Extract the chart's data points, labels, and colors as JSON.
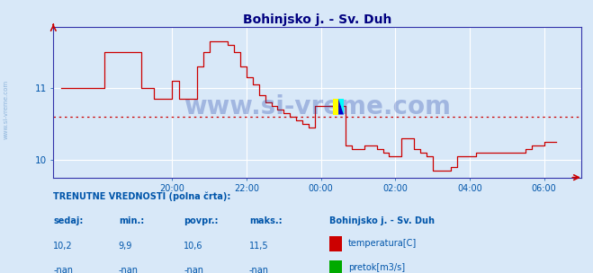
{
  "title": "Bohinjsko j. - Sv. Duh",
  "title_color": "#000080",
  "bg_color": "#d8e8f8",
  "plot_bg_color": "#d8e8f8",
  "grid_color": "#ffffff",
  "line_color": "#cc0000",
  "avg_line_color": "#cc0000",
  "avg_value": 10.6,
  "xlim": [
    -7.2,
    7.0
  ],
  "ylim": [
    9.75,
    11.85
  ],
  "yticks": [
    10,
    11
  ],
  "xtick_labels": [
    "20:00",
    "22:00",
    "00:00",
    "02:00",
    "04:00",
    "06:00"
  ],
  "xtick_positions": [
    -4,
    -2,
    0,
    2,
    4,
    6
  ],
  "watermark": "www.si-vreme.com",
  "watermark_color": "#2244aa",
  "watermark_alpha": 0.3,
  "footer_label1": "TRENUTNE VREDNOSTI (polna črta):",
  "footer_cols": [
    "sedaj:",
    "min.:",
    "povpr.:",
    "maks.:"
  ],
  "footer_vals_temp": [
    "10,2",
    "9,9",
    "10,6",
    "11,5"
  ],
  "footer_vals_pretok": [
    "-nan",
    "-nan",
    "-nan",
    "-nan"
  ],
  "footer_station": "Bohinjsko j. - Sv. Duh",
  "footer_color": "#0055aa",
  "legend_items": [
    {
      "label": "temperatura[C]",
      "color": "#cc0000"
    },
    {
      "label": "pretok[m3/s]",
      "color": "#00aa00"
    }
  ],
  "temp_data_x": [
    -7.0,
    -6.0,
    -5.83,
    -5.5,
    -5.0,
    -4.83,
    -4.5,
    -4.17,
    -4.0,
    -3.83,
    -3.5,
    -3.33,
    -3.17,
    -3.0,
    -2.83,
    -2.67,
    -2.5,
    -2.33,
    -2.17,
    -2.0,
    -1.83,
    -1.67,
    -1.5,
    -1.33,
    -1.17,
    -1.0,
    -0.83,
    -0.67,
    -0.5,
    -0.33,
    -0.17,
    0.0,
    0.17,
    0.33,
    0.5,
    0.67,
    0.83,
    1.0,
    1.17,
    1.33,
    1.5,
    1.67,
    1.83,
    2.0,
    2.17,
    2.33,
    2.5,
    2.67,
    2.83,
    3.0,
    3.17,
    3.33,
    3.5,
    3.67,
    3.83,
    4.0,
    4.17,
    4.33,
    4.5,
    4.67,
    4.83,
    5.0,
    5.17,
    5.33,
    5.5,
    5.67,
    5.83,
    6.0,
    6.17,
    6.33
  ],
  "temp_data_y": [
    11.0,
    11.0,
    11.5,
    11.5,
    11.5,
    11.0,
    10.85,
    10.85,
    11.1,
    10.85,
    10.85,
    11.3,
    11.5,
    11.65,
    11.65,
    11.65,
    11.6,
    11.5,
    11.3,
    11.15,
    11.05,
    10.9,
    10.8,
    10.75,
    10.7,
    10.65,
    10.6,
    10.55,
    10.5,
    10.45,
    10.75,
    10.75,
    10.75,
    10.75,
    10.75,
    10.2,
    10.15,
    10.15,
    10.2,
    10.2,
    10.15,
    10.1,
    10.05,
    10.05,
    10.3,
    10.3,
    10.15,
    10.1,
    10.05,
    9.85,
    9.85,
    9.85,
    9.9,
    10.05,
    10.05,
    10.05,
    10.1,
    10.1,
    10.1,
    10.1,
    10.1,
    10.1,
    10.1,
    10.1,
    10.15,
    10.2,
    10.2,
    10.25,
    10.25,
    10.25
  ]
}
